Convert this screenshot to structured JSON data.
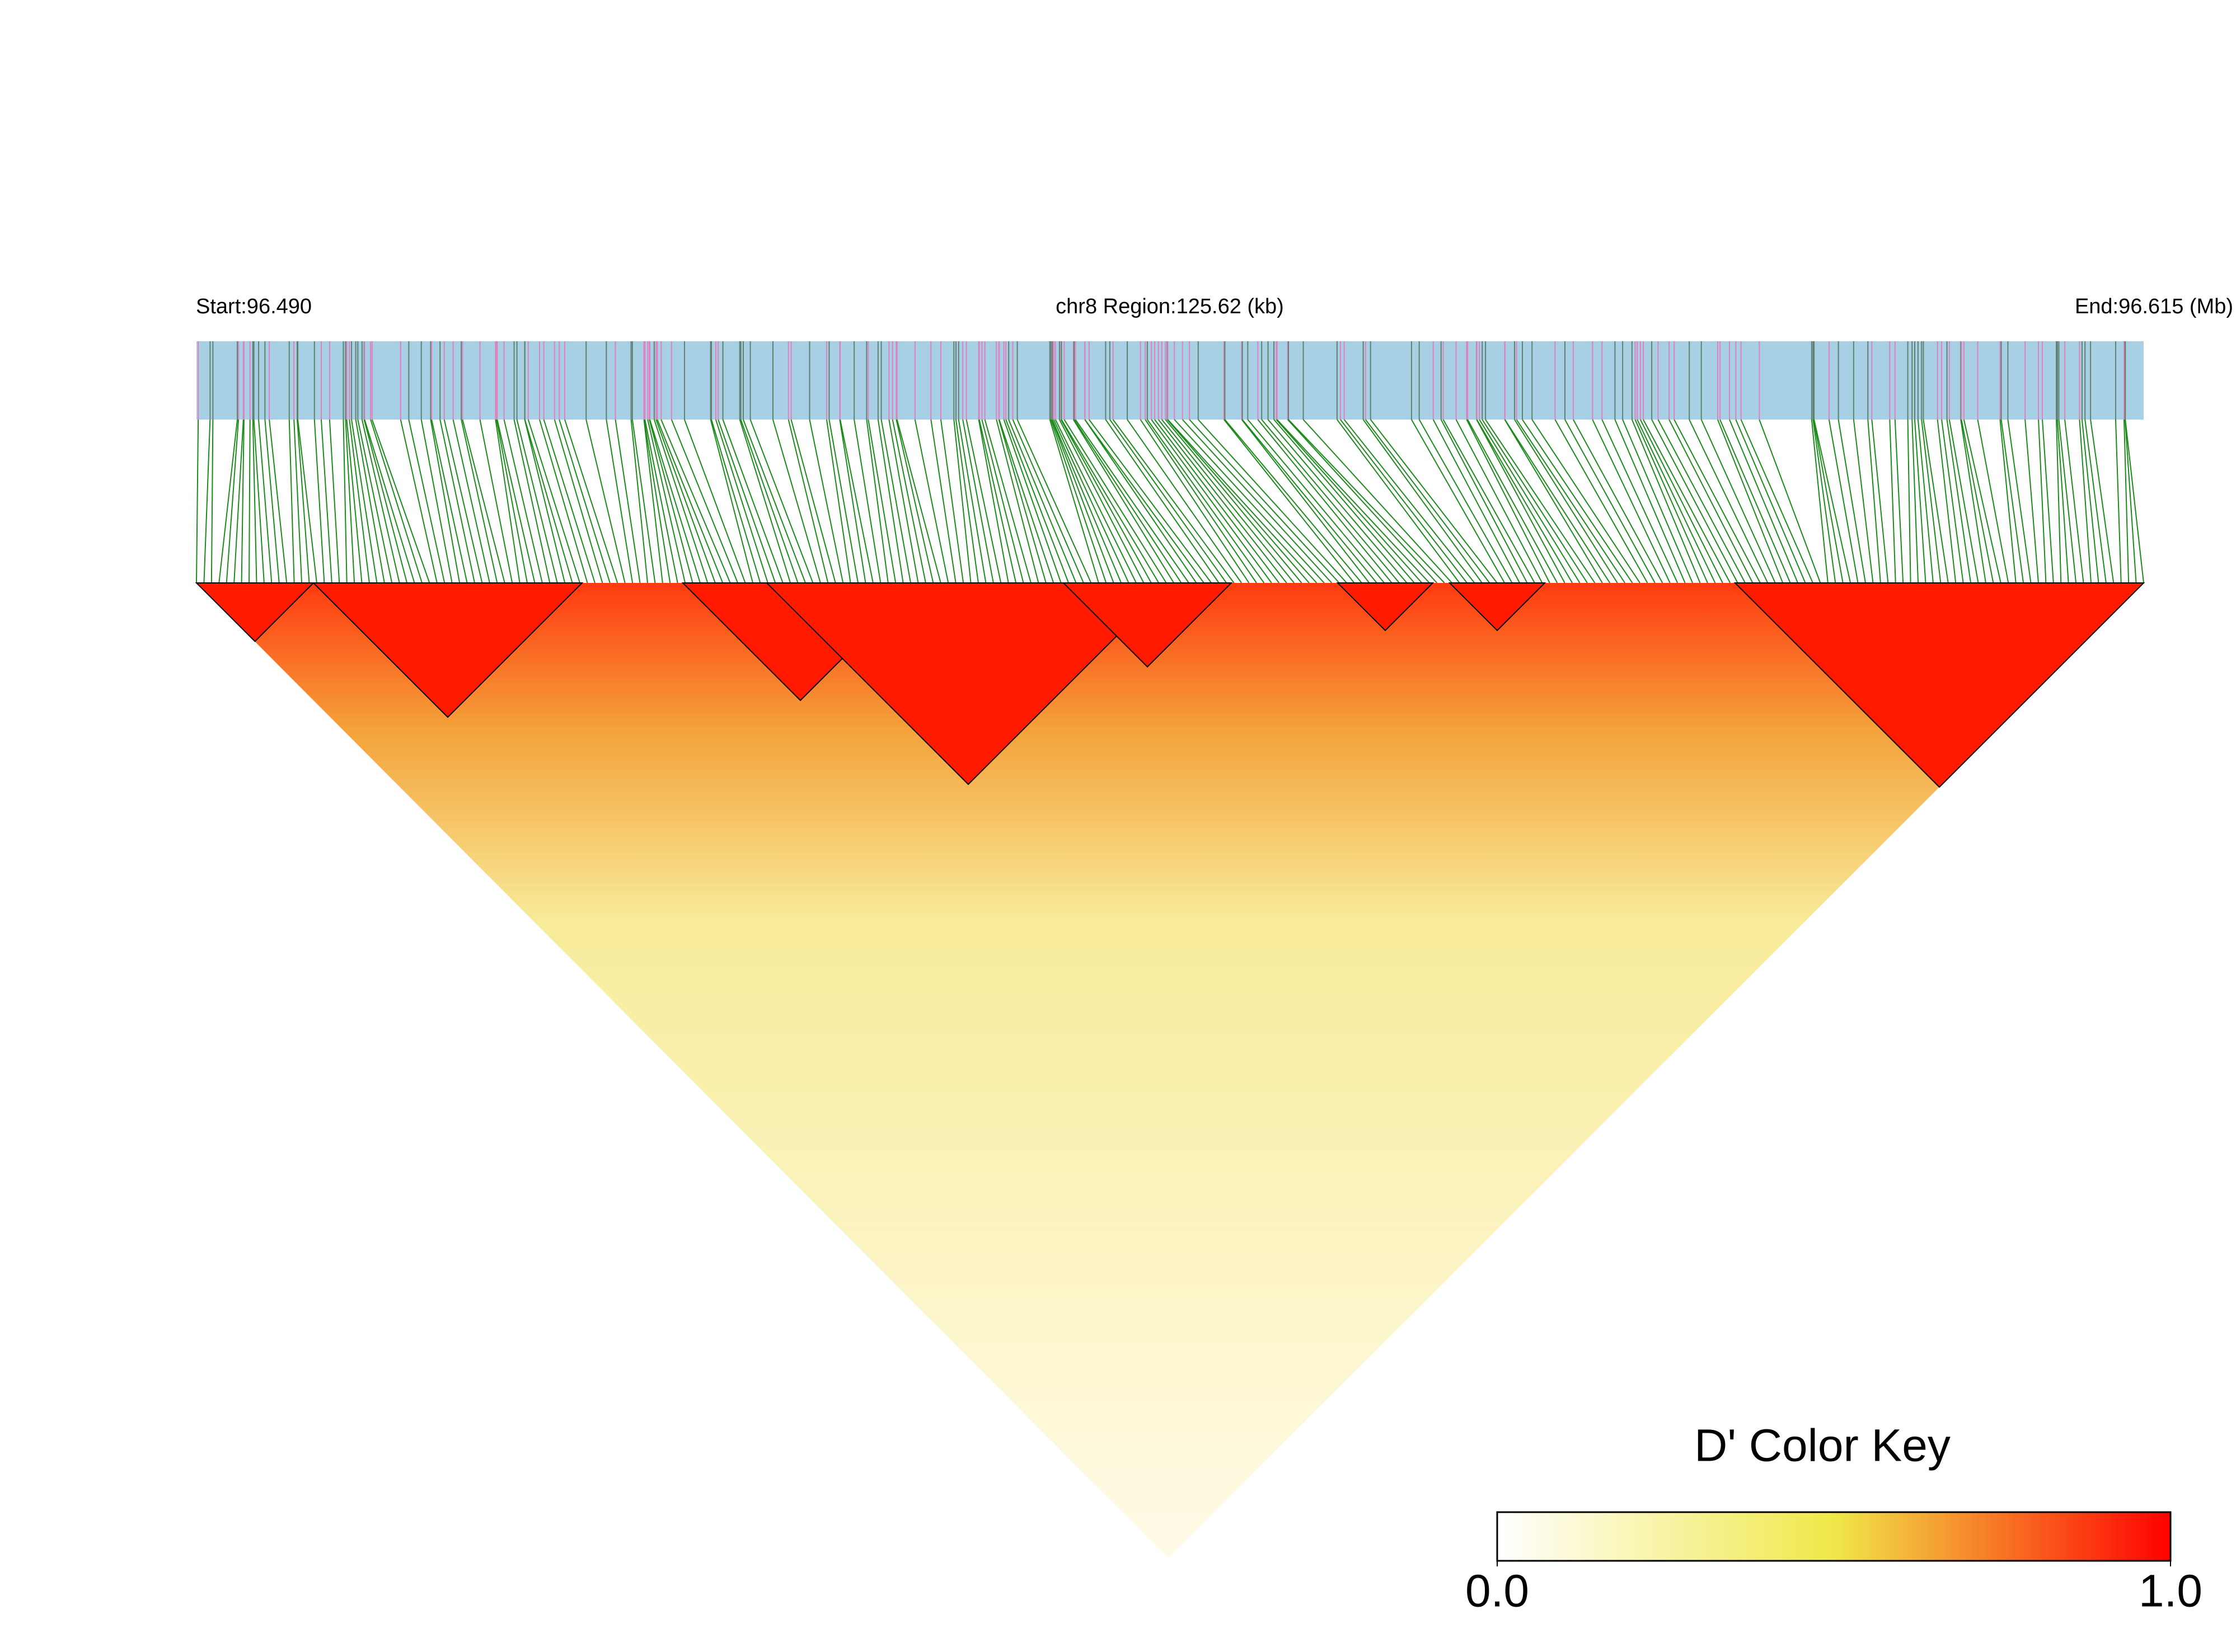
{
  "header": {
    "start": "Start:96.490",
    "region": "chr8 Region:125.62 (kb)",
    "end": "End:96.615 (Mb)"
  },
  "chart_data": {
    "type": "ld-heatmap",
    "colorbar": {
      "title": "D' Color Key",
      "lim": [
        0,
        1
      ],
      "ticks": [
        {
          "value": 0,
          "label": "0.0"
        },
        {
          "value": 1,
          "label": "1.0"
        }
      ],
      "colors": [
        "#ffffff",
        "#f0e84a",
        "#ff0000"
      ]
    }
  }
}
